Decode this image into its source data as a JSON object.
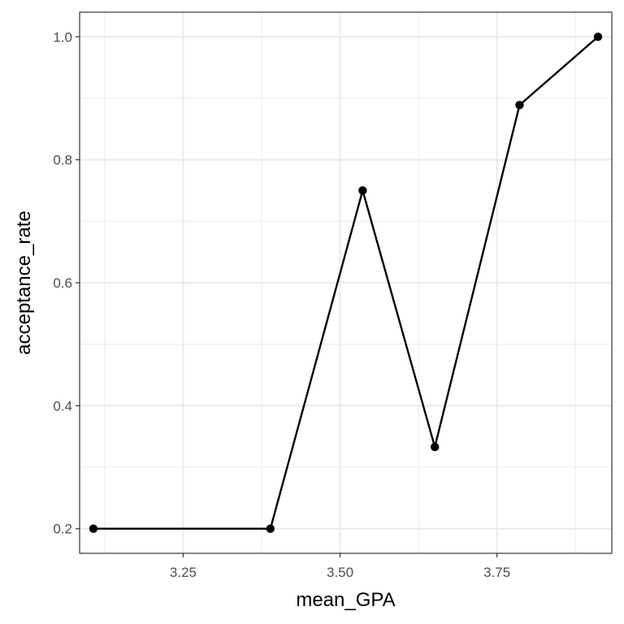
{
  "chart_data": {
    "type": "line",
    "title": "",
    "xlabel": "mean_GPA",
    "ylabel": "acceptance_rate",
    "x": [
      3.107,
      3.389,
      3.536,
      3.651,
      3.786,
      3.911
    ],
    "series": [
      {
        "values": [
          0.2,
          0.2,
          0.75,
          0.333,
          0.889,
          1.0
        ]
      }
    ],
    "xlim": [
      3.085,
      3.933
    ],
    "ylim": [
      0.16,
      1.04
    ],
    "x_ticks": [
      "3.25",
      "3.50",
      "3.75"
    ],
    "y_ticks": [
      "0.2",
      "0.4",
      "0.6",
      "0.8",
      "1.0"
    ],
    "grid": true,
    "legend": "none",
    "colors": {
      "line": "#000000",
      "point": "#000000",
      "grid": "#ebebeb",
      "panel_border": "#333333"
    }
  }
}
